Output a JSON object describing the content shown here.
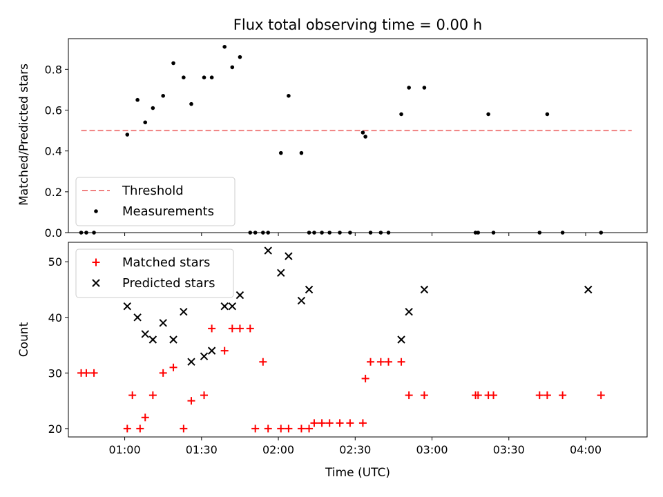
{
  "chart_data": {
    "type": "scatter",
    "title": "Flux total observing time = 0.00 h",
    "xlabel": "Time (UTC)",
    "x_unit": "minutes after 00:00 UTC",
    "xlim": [
      38,
      264
    ],
    "xticks": [
      {
        "value": 60,
        "label": "01:00"
      },
      {
        "value": 90,
        "label": "01:30"
      },
      {
        "value": 120,
        "label": "02:00"
      },
      {
        "value": 150,
        "label": "02:30"
      },
      {
        "value": 180,
        "label": "03:00"
      },
      {
        "value": 210,
        "label": "03:30"
      },
      {
        "value": 240,
        "label": "04:00"
      }
    ],
    "panels": [
      {
        "ylabel": "Matched/Predicted stars",
        "ylim": [
          0,
          0.95
        ],
        "yticks": [
          {
            "value": 0.0,
            "label": "0.0"
          },
          {
            "value": 0.2,
            "label": "0.2"
          },
          {
            "value": 0.4,
            "label": "0.4"
          },
          {
            "value": 0.6,
            "label": "0.6"
          },
          {
            "value": 0.8,
            "label": "0.8"
          }
        ],
        "legend_position": "lower-left",
        "threshold": {
          "name": "Threshold",
          "value": 0.5,
          "x": [
            43,
            258
          ],
          "color": "#f08080"
        },
        "series": [
          {
            "name": "Measurements",
            "marker": "dot",
            "color": "#000000",
            "x": [
              43,
              45,
              48,
              61,
              65,
              68,
              71,
              75,
              79,
              83,
              86,
              91,
              94,
              99,
              102,
              105,
              109,
              111,
              114,
              116,
              121,
              124,
              129,
              132,
              134,
              137,
              140,
              144,
              148,
              153,
              154,
              156,
              160,
              163,
              168,
              171,
              177,
              197,
              198,
              202,
              204,
              222,
              225,
              231,
              246
            ],
            "y": [
              0.0,
              0.0,
              0.0,
              0.48,
              0.65,
              0.54,
              0.61,
              0.67,
              0.83,
              0.76,
              0.63,
              0.76,
              0.76,
              0.91,
              0.81,
              0.86,
              0.0,
              0.0,
              0.0,
              0.0,
              0.39,
              0.67,
              0.39,
              0.0,
              0.0,
              0.0,
              0.0,
              0.0,
              0.0,
              0.49,
              0.47,
              0.0,
              0.0,
              0.0,
              0.58,
              0.71,
              0.71,
              0.0,
              0.0,
              0.58,
              0.0,
              0.0,
              0.58,
              0.0,
              0.0
            ]
          }
        ]
      },
      {
        "ylabel": "Count",
        "ylim": [
          18.5,
          53.5
        ],
        "yticks": [
          {
            "value": 20,
            "label": "20"
          },
          {
            "value": 30,
            "label": "30"
          },
          {
            "value": 40,
            "label": "40"
          },
          {
            "value": 50,
            "label": "50"
          }
        ],
        "legend_position": "upper-left",
        "series": [
          {
            "name": "Matched stars",
            "marker": "plus",
            "color": "#ff0000",
            "x": [
              43,
              45,
              48,
              61,
              63,
              66,
              68,
              71,
              75,
              79,
              83,
              86,
              91,
              94,
              99,
              102,
              105,
              109,
              111,
              114,
              116,
              121,
              124,
              129,
              132,
              134,
              137,
              140,
              144,
              148,
              153,
              154,
              156,
              160,
              163,
              168,
              171,
              177,
              197,
              198,
              202,
              204,
              222,
              225,
              231,
              246
            ],
            "y": [
              30,
              30,
              30,
              20,
              26,
              20,
              22,
              26,
              30,
              31,
              20,
              25,
              26,
              38,
              34,
              38,
              38,
              38,
              20,
              32,
              20,
              20,
              20,
              20,
              20,
              21,
              21,
              21,
              21,
              21,
              21,
              29,
              32,
              32,
              32,
              32,
              26,
              26,
              26,
              26,
              26,
              26,
              26,
              26,
              26,
              26
            ]
          },
          {
            "name": "Predicted stars",
            "marker": "x",
            "color": "#000000",
            "x": [
              61,
              65,
              68,
              71,
              75,
              79,
              83,
              86,
              91,
              94,
              99,
              102,
              105,
              116,
              121,
              124,
              129,
              132,
              168,
              171,
              177,
              241
            ],
            "y": [
              42,
              40,
              37,
              36,
              39,
              36,
              41,
              32,
              33,
              34,
              42,
              42,
              44,
              52,
              48,
              51,
              43,
              45,
              36,
              41,
              45,
              45
            ]
          }
        ]
      }
    ]
  }
}
